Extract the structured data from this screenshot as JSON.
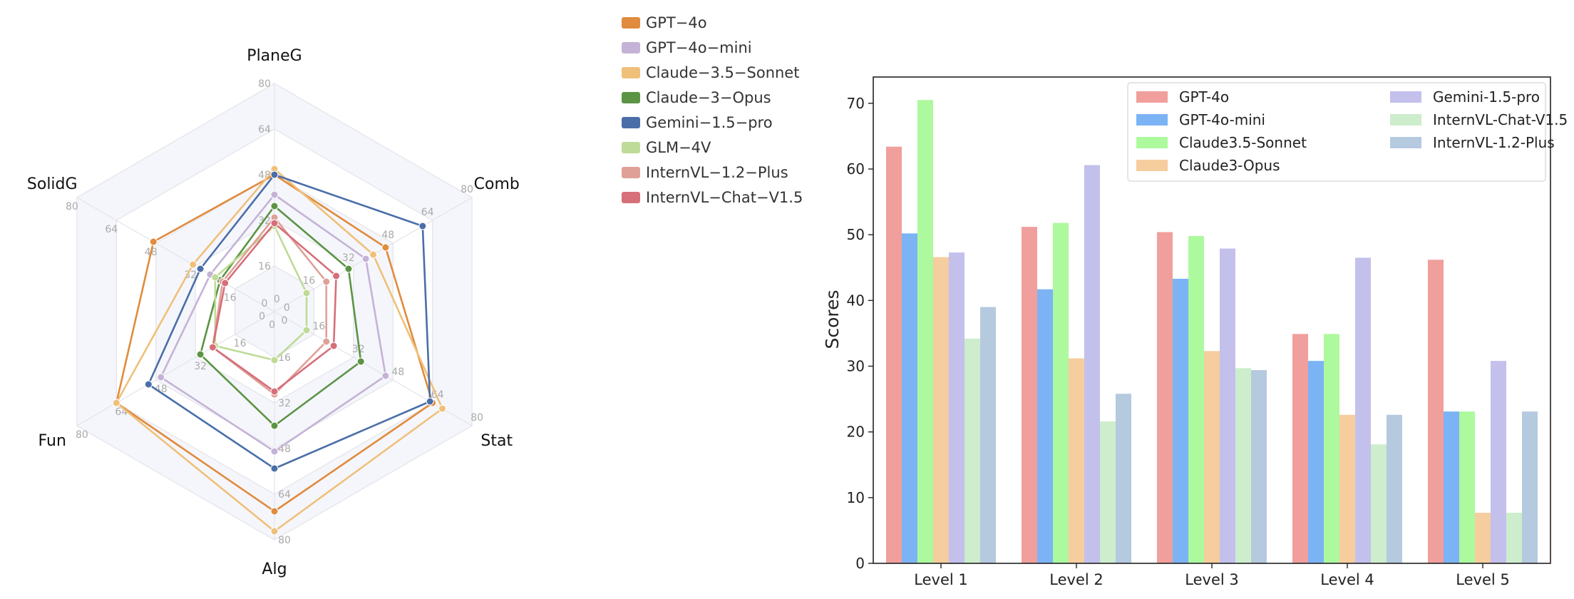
{
  "chart_data": [
    {
      "type": "radar",
      "axes": [
        "PlaneG",
        "Comb",
        "Stat",
        "Alg",
        "Fun",
        "SolidG"
      ],
      "range": [
        0,
        80
      ],
      "ring_ticks": [
        "0",
        "16",
        "32",
        "48",
        "64",
        "80"
      ],
      "legend_position": "right",
      "series": [
        {
          "name": "GPT−4o",
          "color": "#e08b3d",
          "values": [
            48,
            45,
            64,
            70,
            64,
            49
          ]
        },
        {
          "name": "GPT−4o−mini",
          "color": "#c4b3d6",
          "values": [
            41,
            37,
            45,
            49,
            46,
            26
          ]
        },
        {
          "name": "Claude−3.5−Sonnet",
          "color": "#efc07a",
          "values": [
            50,
            40,
            68,
            77,
            64,
            33
          ]
        },
        {
          "name": "Claude−3−Opus",
          "color": "#5b9444",
          "values": [
            37,
            30,
            35,
            40,
            30,
            22
          ]
        },
        {
          "name": "Gemini−1.5−pro",
          "color": "#4a6ea8",
          "values": [
            48,
            60,
            63,
            55,
            51,
            30
          ]
        },
        {
          "name": "GLM−4V",
          "color": "#bedb97",
          "values": [
            30,
            13,
            13,
            17,
            24,
            24
          ]
        },
        {
          "name": "InternVL−1.2−Plus",
          "color": "#dfa097",
          "values": [
            33,
            21,
            21,
            29,
            25,
            21
          ]
        },
        {
          "name": "InternVL−Chat−V1.5",
          "color": "#d66f7a",
          "values": [
            31,
            25,
            24,
            28,
            25,
            20
          ]
        }
      ]
    },
    {
      "type": "bar",
      "categories": [
        "Level 1",
        "Level 2",
        "Level 3",
        "Level 4",
        "Level 5"
      ],
      "ylabel": "Scores",
      "xlabel": "",
      "ylim": [
        0,
        74
      ],
      "yticks": [
        0,
        10,
        20,
        30,
        40,
        50,
        60,
        70
      ],
      "legend_position": "top-right",
      "series": [
        {
          "name": "GPT-4o",
          "color": "#f09f9c",
          "values": [
            63.4,
            51.2,
            50.4,
            34.9,
            46.2
          ]
        },
        {
          "name": "GPT-4o-mini",
          "color": "#7bb3f5",
          "values": [
            50.2,
            41.7,
            43.3,
            30.8,
            23.1
          ]
        },
        {
          "name": "Claude3.5-Sonnet",
          "color": "#adf99e",
          "values": [
            70.5,
            51.8,
            49.8,
            34.9,
            23.1
          ]
        },
        {
          "name": "Claude3-Opus",
          "color": "#f5cd9f",
          "values": [
            46.6,
            31.2,
            32.3,
            22.6,
            7.7
          ]
        },
        {
          "name": "Gemini-1.5-pro",
          "color": "#c3c0ec",
          "values": [
            47.3,
            60.6,
            47.9,
            46.5,
            30.8
          ]
        },
        {
          "name": "InternVL-Chat-V1.5",
          "color": "#cdedcc",
          "values": [
            34.2,
            21.6,
            29.7,
            18.1,
            7.7
          ]
        },
        {
          "name": "InternVL-1.2-Plus",
          "color": "#b5c9df",
          "values": [
            39.0,
            25.8,
            29.4,
            22.6,
            23.1
          ]
        }
      ]
    }
  ]
}
